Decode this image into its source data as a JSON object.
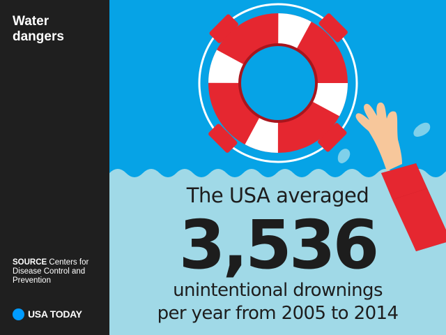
{
  "sidebar": {
    "title": "Water dangers",
    "source_label": "SOURCE",
    "source_text": "Centers for Disease Control and Prevention",
    "brand_name": "USA TODAY"
  },
  "main": {
    "headline": "The USA averaged",
    "big_number": "3,536",
    "description_line1": "unintentional drownings",
    "description_line2": "per year from 2005 to 2014"
  },
  "icons": [
    "life-ring-icon",
    "drowning-hand-icon",
    "water-splash-icon",
    "usa-today-dot-icon"
  ],
  "colors": {
    "sky": "#06a3e6",
    "water": "#a0d9e7",
    "sidebar": "#1f1f1f",
    "ring_red": "#e52730",
    "ring_dark_red": "#a8151d",
    "brand_dot": "#009bff",
    "text": "#1d1d1d"
  }
}
